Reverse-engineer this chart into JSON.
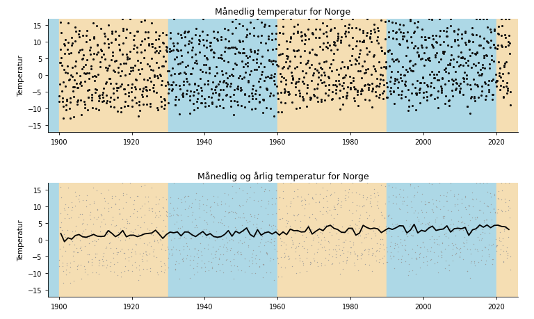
{
  "title1": "Månedlig temperatur for Norge",
  "title2": "Månedlig og årlig temperatur for Norge",
  "ylabel": "Temperatur",
  "year_start": 1900,
  "year_end": 2023,
  "ylim": [
    -17,
    17
  ],
  "yticks": [
    -15,
    -10,
    -5,
    0,
    5,
    10,
    15
  ],
  "xticks": [
    1900,
    1920,
    1940,
    1960,
    1980,
    2000,
    2020
  ],
  "bg_color": "#ffffff",
  "color_orange": "#F5DEB3",
  "color_blue": "#ADD8E6",
  "dot_color_top": "#111111",
  "dot_color_bottom": "#999999",
  "line_color": "#000000",
  "seed": 42,
  "band_starts": [
    1900,
    1930,
    1960,
    1990,
    2020
  ],
  "band_ends": [
    1930,
    1960,
    1990,
    2020,
    2026
  ],
  "band_colors": [
    "#F5DEB3",
    "#ADD8E6",
    "#F5DEB3",
    "#ADD8E6",
    "#F5DEB3"
  ],
  "left_strip_color": "#ADD8E6",
  "left_strip_start": 1897,
  "left_strip_end": 1900,
  "xlim_left": 1897,
  "xlim_right": 2026
}
